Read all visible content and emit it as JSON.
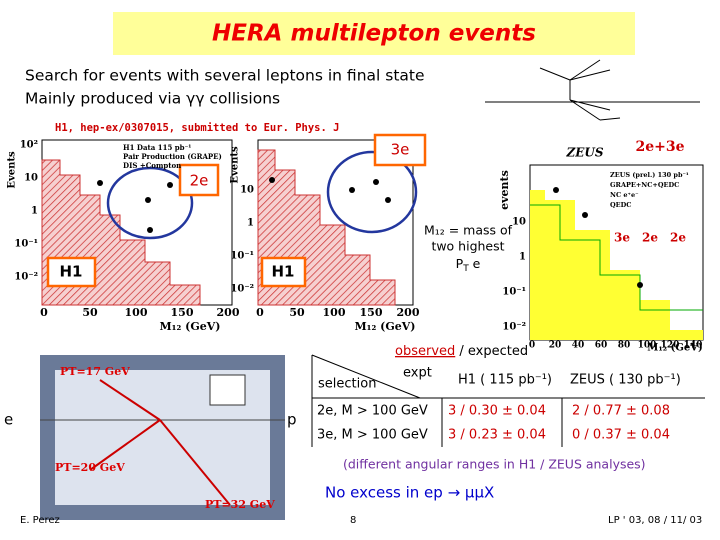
{
  "title": "HERA multilepton events",
  "intro": [
    "Search for events with several leptons in final state",
    "Mainly produced via γγ collisions"
  ],
  "reference": "H1, hep-ex/0307015, submitted to Eur. Phys. J",
  "plots": {
    "h1_left": {
      "ylabel": "Events",
      "xlabel": "M₁₂ (GeV)",
      "xticks": [
        "0",
        "50",
        "100",
        "150",
        "200"
      ],
      "yticks": [
        "10²",
        "10",
        "1",
        "10⁻¹",
        "10⁻²"
      ],
      "legend": [
        "H1 Data 115 pb⁻¹",
        "Pair Production (GRAPE)",
        "DIS +Compton"
      ],
      "tag": "2e",
      "experiment": "H1"
    },
    "h1_right": {
      "ylabel": "Events",
      "xlabel": "M₁₂ (GeV)",
      "xticks": [
        "0",
        "50",
        "100",
        "150",
        "200"
      ],
      "yticks": [
        "10",
        "1",
        "10⁻¹",
        "10⁻²"
      ],
      "tag": "3e",
      "experiment": "H1"
    },
    "zeus": {
      "experiment": "ZEUS",
      "tag": "2e+3e",
      "ylabel": "events",
      "xlabel": "M₁₂ (GeV)",
      "xticks": [
        "0",
        "20",
        "40",
        "60",
        "80",
        "100",
        "120",
        "140"
      ],
      "yticks": [
        "10",
        "1",
        "10⁻¹",
        "10⁻²"
      ],
      "legend": [
        "ZEUS (prel.) 130 pb⁻¹",
        "GRAPE+NC+QEDC",
        "NC e⁺e⁻",
        "QEDC"
      ],
      "channels": [
        "3e",
        "2e",
        "2e"
      ]
    }
  },
  "annotation": {
    "lines": [
      "M₁₂ = mass of",
      "two highest"
    ],
    "pt": "P",
    "pt_sub": "T",
    "pt_rest": " e"
  },
  "event_display": {
    "labels": [
      "PT=17 GeV",
      "PT=20 GeV",
      "PT=32 GeV"
    ],
    "beam_left": "e",
    "beam_right": "p"
  },
  "table": {
    "caption": [
      "observed",
      " / expected"
    ],
    "header": [
      "selection",
      "expt",
      "H1 ( 115 pb⁻¹)",
      "ZEUS ( 130 pb⁻¹)"
    ],
    "rows": [
      [
        "2e, M > 100 GeV",
        "3 / 0.30 ± 0.04",
        "2 / 0.77 ± 0.08"
      ],
      [
        "3e, M > 100 GeV",
        "3 / 0.23 ± 0.04",
        "0 / 0.37 ± 0.04"
      ]
    ]
  },
  "note": "(different angular ranges in H1 / ZEUS analyses)",
  "conclusion": "No excess in ep → μμX",
  "footer": {
    "author": "E. Perez",
    "page": "8",
    "conference": "LP ' 03, 08 / 11/ 03"
  }
}
